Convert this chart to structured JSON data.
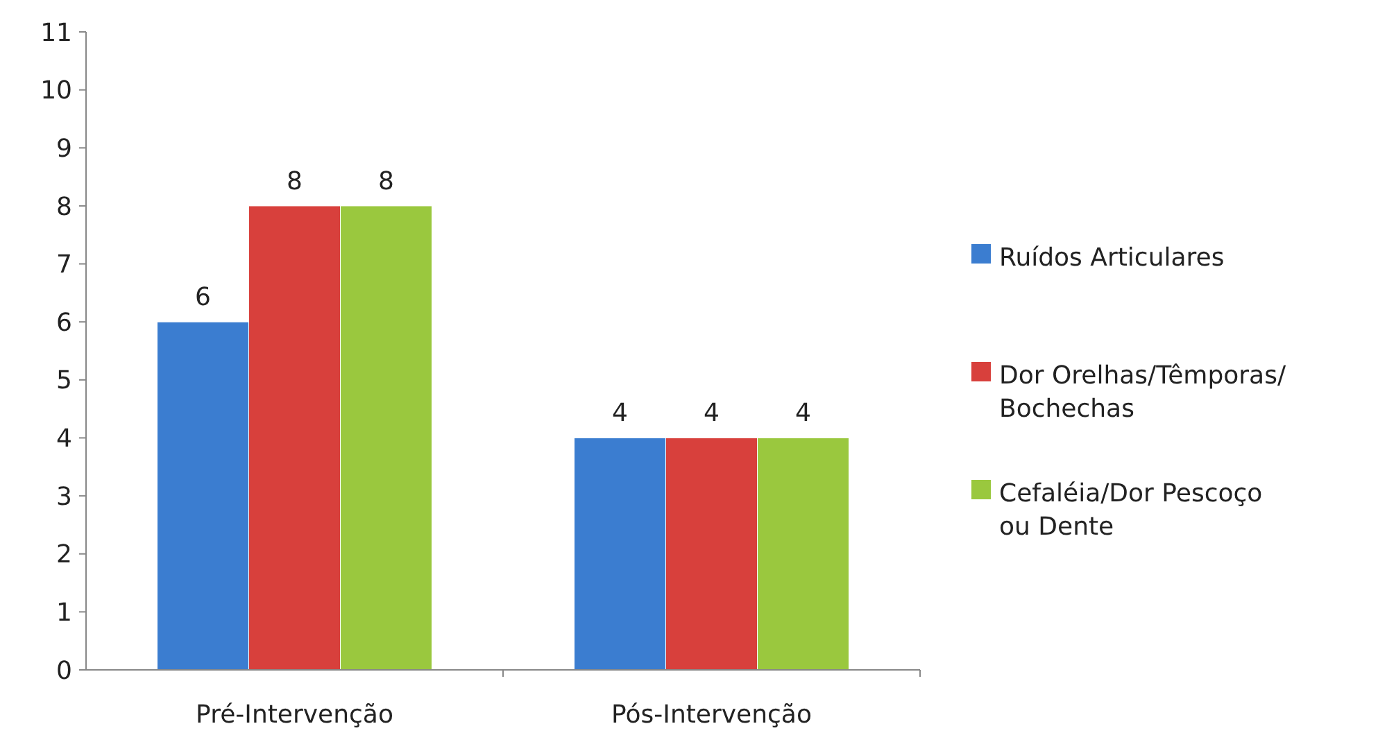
{
  "chart_data": {
    "type": "bar",
    "categories": [
      "Pré-Intervenção",
      "Pós-Intervenção"
    ],
    "series": [
      {
        "name": "Ruídos Articulares",
        "color": "#3b7dd0",
        "values": [
          6,
          4
        ]
      },
      {
        "name": "Dor Orelhas/Têmporas/ Bochechas",
        "color": "#d8403c",
        "values": [
          8,
          4
        ]
      },
      {
        "name": "Cefaléia/Dor Pescoço ou Dente",
        "color": "#9ac83e",
        "values": [
          8,
          4
        ]
      }
    ],
    "ylim": [
      0,
      11
    ],
    "yticks": [
      0,
      1,
      2,
      3,
      4,
      5,
      6,
      7,
      8,
      9,
      10,
      11
    ],
    "data_labels": true,
    "legend": "right",
    "grid": false
  }
}
